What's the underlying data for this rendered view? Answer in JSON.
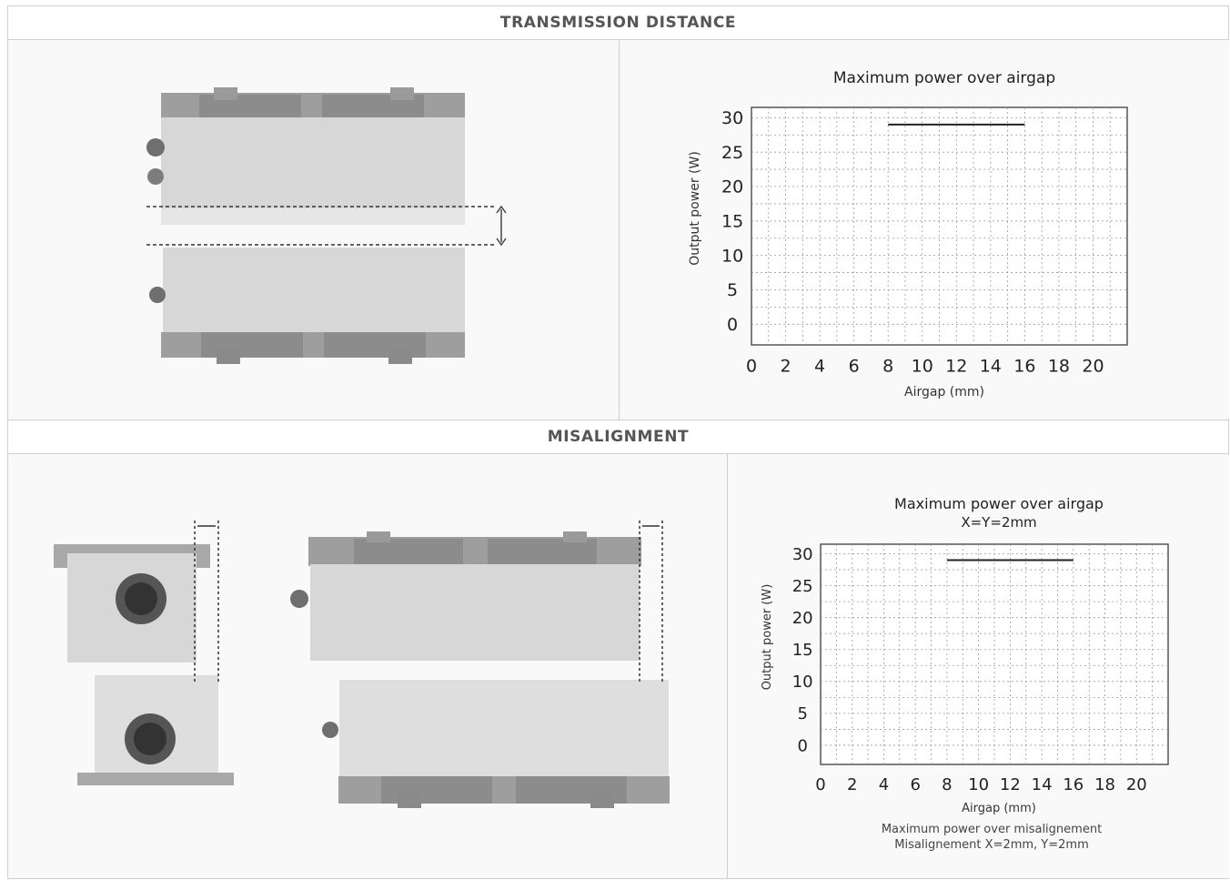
{
  "sections": [
    {
      "header": "TRANSMISSION DISTANCE"
    },
    {
      "header": "MISALIGNMENT"
    }
  ],
  "chart_data": [
    {
      "type": "line",
      "title": "Maximum power over airgap",
      "subtitle": "",
      "xlabel": "Airgap (mm)",
      "ylabel": "Output power (W)",
      "x_ticks": [
        0,
        2,
        4,
        6,
        8,
        10,
        12,
        14,
        16,
        18,
        20
      ],
      "y_ticks": [
        0,
        5,
        10,
        15,
        20,
        25,
        30
      ],
      "xlim": [
        0,
        22
      ],
      "ylim": [
        -3,
        31.5
      ],
      "grid": true,
      "series": [
        {
          "x": [
            8,
            16
          ],
          "y": [
            29,
            29
          ],
          "color": "#222222"
        }
      ],
      "notes": []
    },
    {
      "type": "line",
      "title": "Maximum power over airgap",
      "subtitle": "X=Y=2mm",
      "xlabel": "Airgap (mm)",
      "ylabel": "Output power (W)",
      "x_ticks": [
        0,
        2,
        4,
        6,
        8,
        10,
        12,
        14,
        16,
        18,
        20
      ],
      "y_ticks": [
        0,
        5,
        10,
        15,
        20,
        25,
        30
      ],
      "xlim": [
        0,
        22
      ],
      "ylim": [
        -3,
        31.5
      ],
      "grid": true,
      "series": [
        {
          "x": [
            8,
            16
          ],
          "y": [
            29,
            29
          ],
          "color": "#222222"
        }
      ],
      "notes": [
        "Maximum power over misalignement",
        "Misalignement X=2mm, Y=2mm"
      ]
    }
  ]
}
